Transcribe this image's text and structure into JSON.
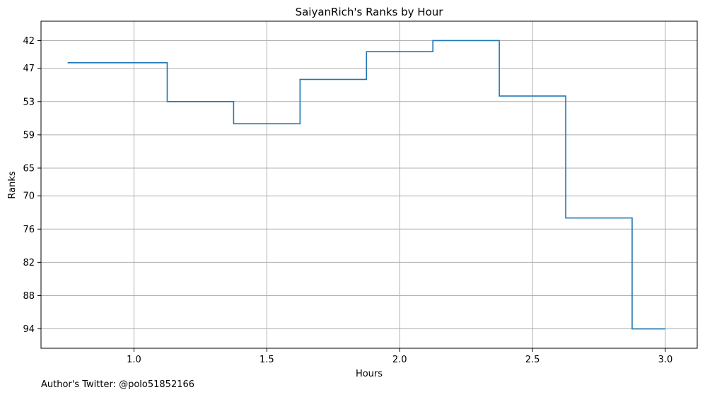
{
  "chart_data": {
    "type": "line",
    "step": "mid",
    "title": "SaiyanRich's Ranks by Hour",
    "xlabel": "Hours",
    "ylabel": "Ranks",
    "x": [
      0.75,
      1.0,
      1.25,
      1.5,
      1.75,
      2.0,
      2.25,
      2.5,
      2.75,
      3.0
    ],
    "series": [
      {
        "values": [
          46,
          46,
          53,
          57,
          49,
          44,
          42,
          52,
          74,
          94
        ]
      }
    ],
    "xlim": [
      0.65,
      3.12
    ],
    "ylim": [
      97.5,
      38.5
    ],
    "y_inverted": true,
    "xticks": [
      1.0,
      1.5,
      2.0,
      2.5,
      3.0
    ],
    "xtick_labels": [
      "1.0",
      "1.5",
      "2.0",
      "2.5",
      "3.0"
    ],
    "yticks": [
      42,
      47,
      53,
      59,
      65,
      70,
      76,
      82,
      88,
      94
    ],
    "ytick_labels": [
      "42",
      "47",
      "53",
      "59",
      "65",
      "70",
      "76",
      "82",
      "88",
      "94"
    ],
    "grid": true,
    "line_color": "#1f77b4",
    "grid_color": "#b0b0b0"
  },
  "footnote": "Author's Twitter: @polo51852166"
}
